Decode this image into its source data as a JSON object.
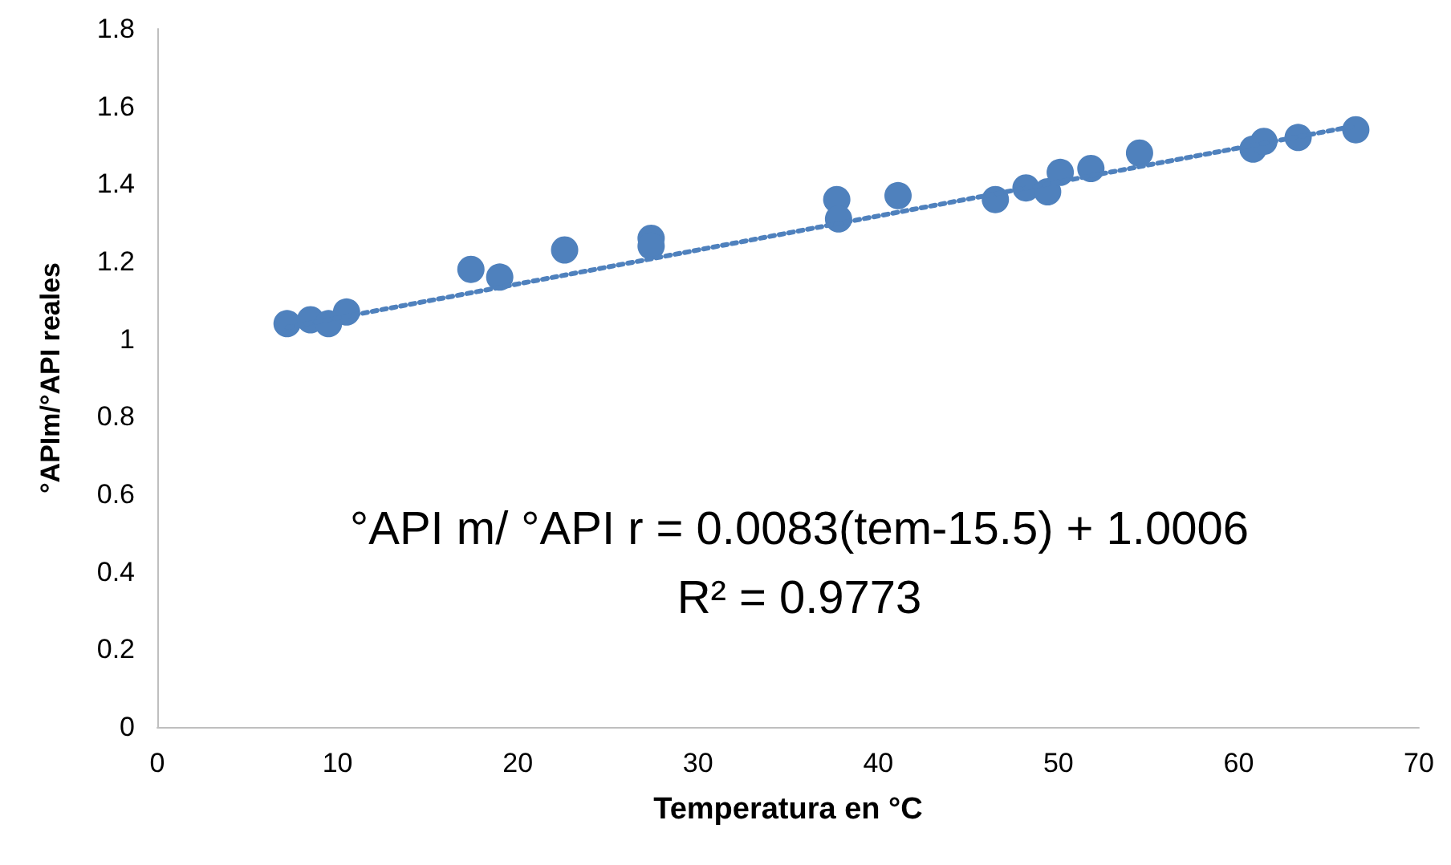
{
  "chart_data": {
    "type": "scatter",
    "xlabel": "Temperatura en °C",
    "ylabel": "°APIm/°API reales",
    "annotations": [
      "°API m/ °API r = 0.0083(tem-15.5) + 1.0006",
      "R² = 0.9773"
    ],
    "xlim": [
      0,
      70
    ],
    "xticks": [
      0,
      10,
      20,
      30,
      40,
      50,
      60,
      70
    ],
    "ylim": [
      0,
      1.8
    ],
    "yticks": [
      0,
      0.2,
      0.4,
      0.6,
      0.8,
      1,
      1.2,
      1.4,
      1.6,
      1.8
    ],
    "grid": false,
    "marker": "circle",
    "series": [
      {
        "type": "scatter",
        "color": "#4f81bd",
        "x": [
          7.2,
          8.5,
          9.5,
          10.5,
          17.4,
          19.0,
          22.6,
          27.4,
          27.4,
          37.7,
          37.8,
          41.1,
          46.5,
          48.2,
          49.4,
          50.1,
          51.8,
          54.5,
          60.8,
          61.4,
          63.3,
          66.5
        ],
        "values": [
          1.04,
          1.05,
          1.04,
          1.07,
          1.18,
          1.16,
          1.23,
          1.26,
          1.24,
          1.36,
          1.31,
          1.37,
          1.36,
          1.39,
          1.38,
          1.43,
          1.44,
          1.48,
          1.49,
          1.51,
          1.52,
          1.54
        ]
      },
      {
        "type": "line",
        "color": "#4f81bd",
        "marker": "none",
        "line_style": "dotted",
        "x": [
          7.2,
          66.5
        ],
        "values": [
          1.03,
          1.55
        ]
      }
    ]
  }
}
